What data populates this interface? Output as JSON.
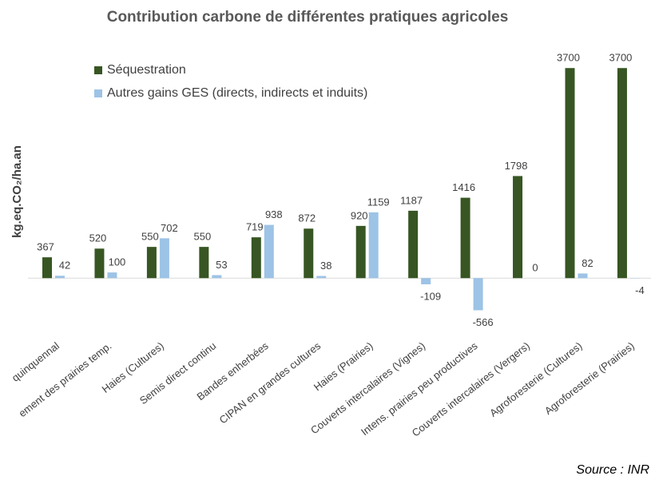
{
  "chart_data": {
    "type": "bar",
    "title": "Contribution carbone de différentes pratiques agricoles",
    "y_label": "kg.eq.CO₂/ha.an",
    "source": "Source : INR",
    "categories": [
      "quinquennal",
      "ement des prairies temp.",
      "Haies (Cultures)",
      "Semis direct continu",
      "Bandes enherbées",
      "CIPAN en grandes cultures",
      "Haies (Prairies)",
      "Couverts intercalaires (Vignes)",
      "Intens. prairies peu productives",
      "Couverts intercalaires (Vergers)",
      "Agroforesterie (Cultures)",
      "Agroforesterie (Prairies)"
    ],
    "series": [
      {
        "name": "Séquestration",
        "color": "#375623",
        "values": [
          367,
          520,
          550,
          550,
          719,
          872,
          920,
          1187,
          1416,
          1798,
          3700,
          3700
        ]
      },
      {
        "name": "Autres gains GES (directs, indirects et induits)",
        "color": "#9dc3e6",
        "values": [
          42,
          100,
          702,
          53,
          938,
          38,
          1159,
          -109,
          -566,
          0,
          82,
          -4
        ]
      }
    ],
    "ylim": [
      -700,
      3900
    ],
    "legend": "top-left"
  }
}
